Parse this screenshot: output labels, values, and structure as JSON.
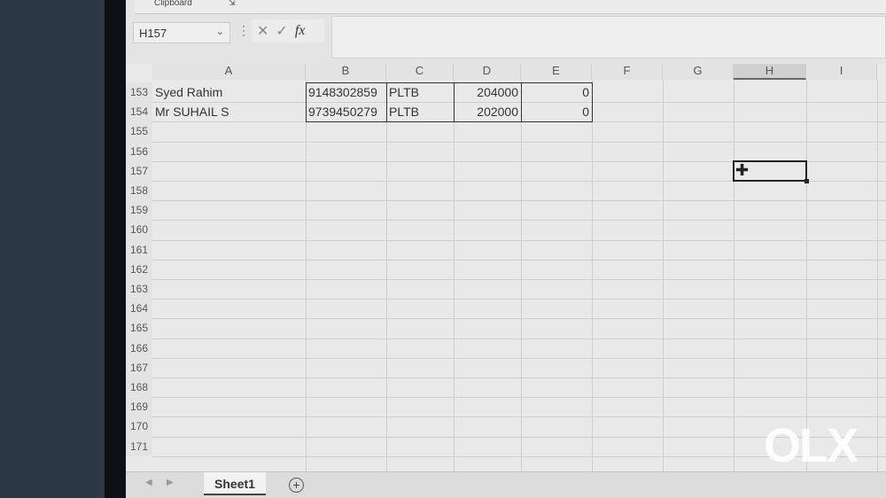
{
  "ribbon": {
    "group_label": "Clipboard",
    "launcher_icon": "dialog-launcher-icon"
  },
  "formula_bar": {
    "name_box": "H157",
    "chevron": "⌄",
    "cancel": "✕",
    "enter": "✓",
    "fx": "fx",
    "value": ""
  },
  "columns": [
    "A",
    "B",
    "C",
    "D",
    "E",
    "F",
    "G",
    "H",
    "I"
  ],
  "selected_column": "H",
  "rows": [
    {
      "num": "153",
      "A": "Syed Rahim",
      "B": "9148302859",
      "C": "PLTB",
      "D": "204000",
      "E": "0"
    },
    {
      "num": "154",
      "A": "Mr SUHAIL S",
      "B": "9739450279",
      "C": "PLTB",
      "D": "202000",
      "E": "0"
    }
  ],
  "empty_rows": [
    "155",
    "156",
    "157",
    "158",
    "159",
    "160",
    "161",
    "162",
    "163",
    "164",
    "165",
    "166",
    "167",
    "168",
    "169",
    "170",
    "171"
  ],
  "selected_cell": "H157",
  "sheet_tabs": {
    "active": "Sheet1",
    "prev": "◀",
    "next": "▶",
    "add": "+"
  },
  "watermark": "OLX"
}
